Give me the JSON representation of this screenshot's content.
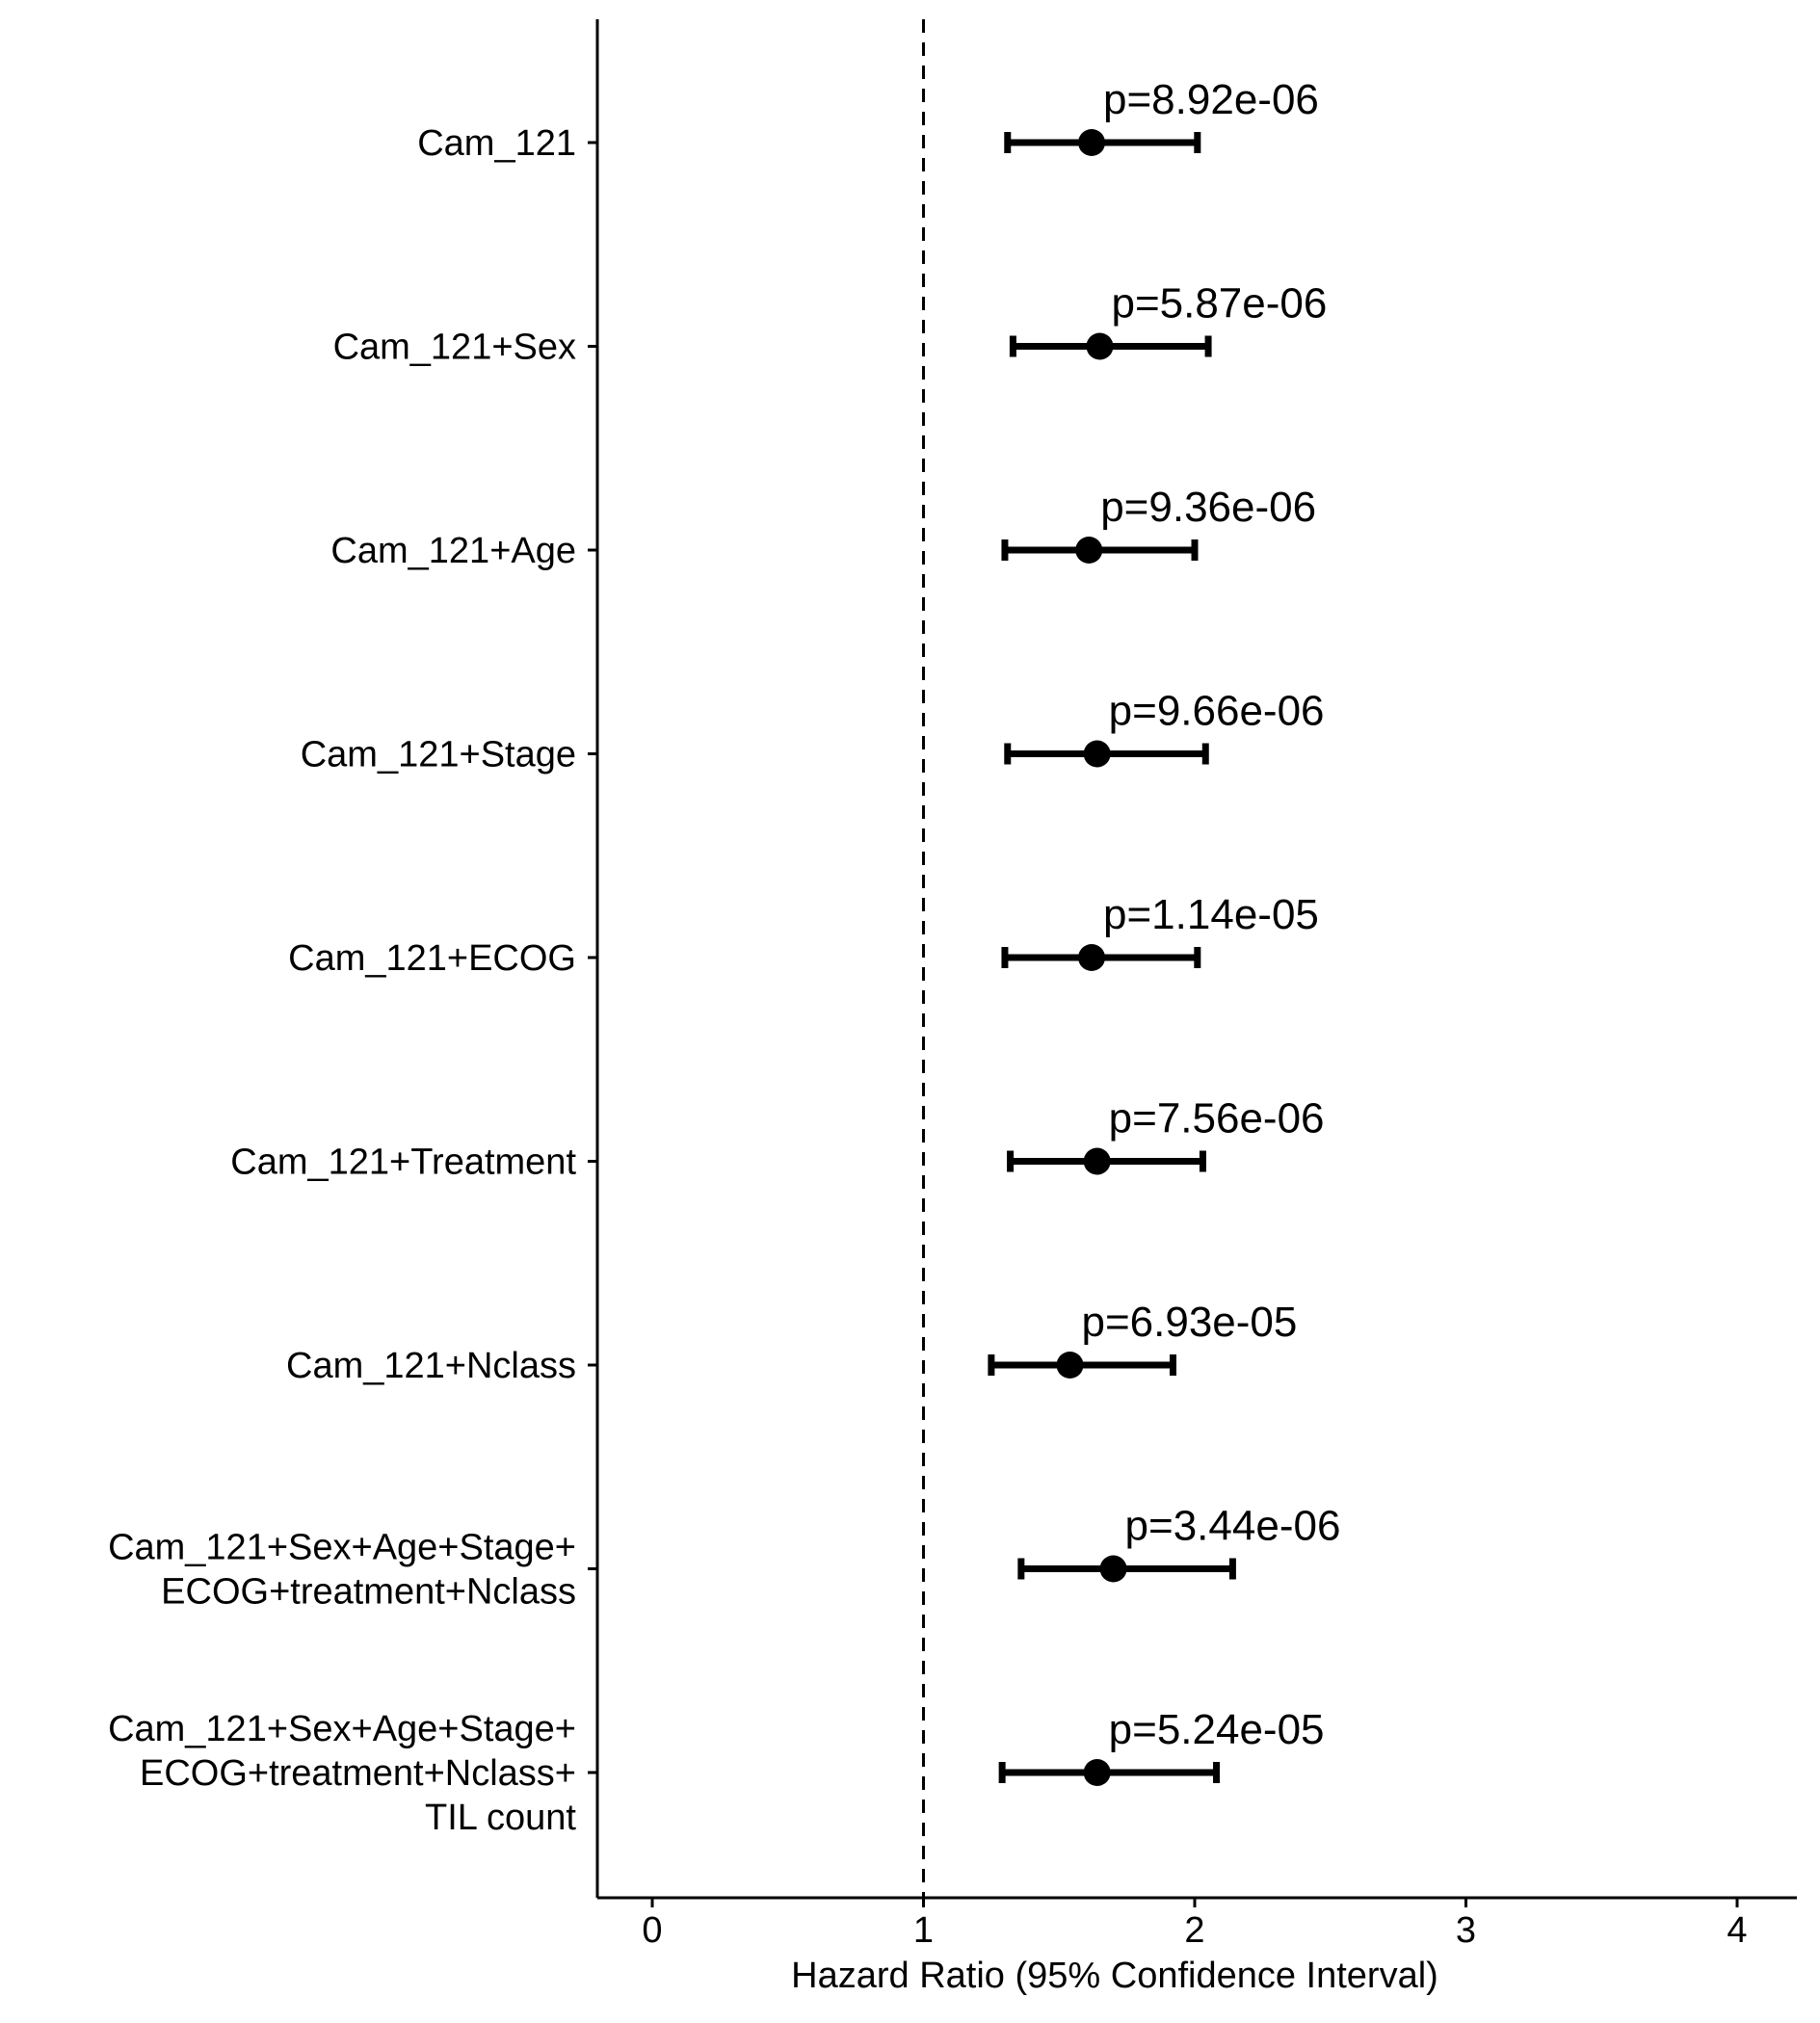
{
  "chart_data": {
    "type": "forest",
    "xlabel": "Hazard Ratio (95% Confidence Interval)",
    "xlim": [
      -0.2,
      4.2
    ],
    "x_ticks": [
      0,
      1,
      2,
      3,
      4
    ],
    "reference_line": 1,
    "grid": false,
    "rows": [
      {
        "label_lines": [
          "Cam_121"
        ],
        "hr": 1.62,
        "lower": 1.31,
        "upper": 2.01,
        "p_label": "p=8.92e-06"
      },
      {
        "label_lines": [
          "Cam_121+Sex"
        ],
        "hr": 1.65,
        "lower": 1.33,
        "upper": 2.05,
        "p_label": "p=5.87e-06"
      },
      {
        "label_lines": [
          "Cam_121+Age"
        ],
        "hr": 1.61,
        "lower": 1.3,
        "upper": 2.0,
        "p_label": "p=9.36e-06"
      },
      {
        "label_lines": [
          "Cam_121+Stage"
        ],
        "hr": 1.64,
        "lower": 1.31,
        "upper": 2.04,
        "p_label": "p=9.66e-06"
      },
      {
        "label_lines": [
          "Cam_121+ECOG"
        ],
        "hr": 1.62,
        "lower": 1.3,
        "upper": 2.01,
        "p_label": "p=1.14e-05"
      },
      {
        "label_lines": [
          "Cam_121+Treatment"
        ],
        "hr": 1.64,
        "lower": 1.32,
        "upper": 2.03,
        "p_label": "p=7.56e-06"
      },
      {
        "label_lines": [
          "Cam_121+Nclass"
        ],
        "hr": 1.54,
        "lower": 1.25,
        "upper": 1.92,
        "p_label": "p=6.93e-05"
      },
      {
        "label_lines": [
          "Cam_121+Sex+Age+Stage+",
          "ECOG+treatment+Nclass"
        ],
        "hr": 1.7,
        "lower": 1.36,
        "upper": 2.14,
        "p_label": "p=3.44e-06"
      },
      {
        "label_lines": [
          "Cam_121+Sex+Age+Stage+",
          "ECOG+treatment+Nclass+",
          "TIL count"
        ],
        "hr": 1.64,
        "lower": 1.29,
        "upper": 2.08,
        "p_label": "p=5.24e-05"
      }
    ]
  }
}
